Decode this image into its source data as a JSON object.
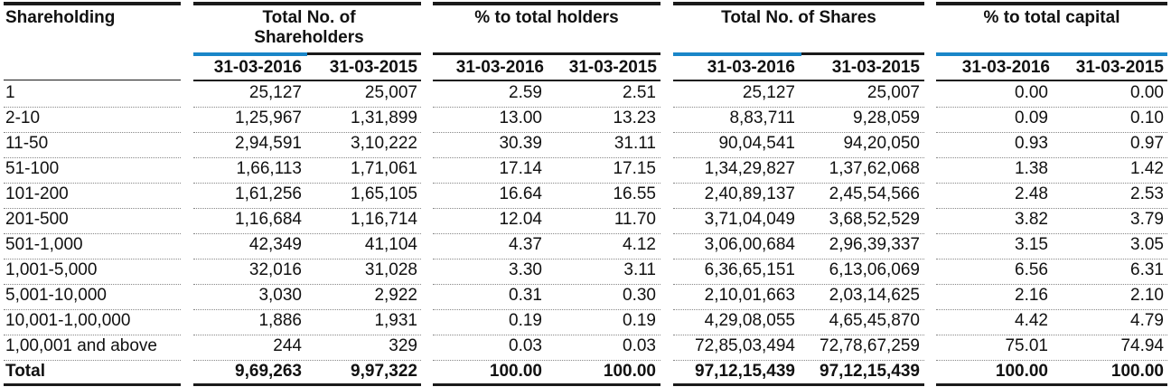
{
  "headers": {
    "shareholding": "Shareholding",
    "holders": "Total No. of Shareholders",
    "pct_holders": "% to total holders",
    "shares": "Total No. of Shares",
    "pct_capital": "% to total capital"
  },
  "dates": [
    "31-03-2016",
    "31-03-2015"
  ],
  "rows": [
    {
      "label": "1",
      "h16": "25,127",
      "h15": "25,007",
      "ph16": "2.59",
      "ph15": "2.51",
      "s16": "25,127",
      "s15": "25,007",
      "pc16": "0.00",
      "pc15": "0.00"
    },
    {
      "label": "2-10",
      "h16": "1,25,967",
      "h15": "1,31,899",
      "ph16": "13.00",
      "ph15": "13.23",
      "s16": "8,83,711",
      "s15": "9,28,059",
      "pc16": "0.09",
      "pc15": "0.10"
    },
    {
      "label": "11-50",
      "h16": "2,94,591",
      "h15": "3,10,222",
      "ph16": "30.39",
      "ph15": "31.11",
      "s16": "90,04,541",
      "s15": "94,20,050",
      "pc16": "0.93",
      "pc15": "0.97"
    },
    {
      "label": "51-100",
      "h16": "1,66,113",
      "h15": "1,71,061",
      "ph16": "17.14",
      "ph15": "17.15",
      "s16": "1,34,29,827",
      "s15": "1,37,62,068",
      "pc16": "1.38",
      "pc15": "1.42"
    },
    {
      "label": "101-200",
      "h16": "1,61,256",
      "h15": "1,65,105",
      "ph16": "16.64",
      "ph15": "16.55",
      "s16": "2,40,89,137",
      "s15": "2,45,54,566",
      "pc16": "2.48",
      "pc15": "2.53"
    },
    {
      "label": "201-500",
      "h16": "1,16,684",
      "h15": "1,16,714",
      "ph16": "12.04",
      "ph15": "11.70",
      "s16": "3,71,04,049",
      "s15": "3,68,52,529",
      "pc16": "3.82",
      "pc15": "3.79"
    },
    {
      "label": "501-1,000",
      "h16": "42,349",
      "h15": "41,104",
      "ph16": "4.37",
      "ph15": "4.12",
      "s16": "3,06,00,684",
      "s15": "2,96,39,337",
      "pc16": "3.15",
      "pc15": "3.05"
    },
    {
      "label": "1,001-5,000",
      "h16": "32,016",
      "h15": "31,028",
      "ph16": "3.30",
      "ph15": "3.11",
      "s16": "6,36,65,151",
      "s15": "6,13,06,069",
      "pc16": "6.56",
      "pc15": "6.31"
    },
    {
      "label": "5,001-10,000",
      "h16": "3,030",
      "h15": "2,922",
      "ph16": "0.31",
      "ph15": "0.30",
      "s16": "2,10,01,663",
      "s15": "2,03,14,625",
      "pc16": "2.16",
      "pc15": "2.10"
    },
    {
      "label": "10,001-1,00,000",
      "h16": "1,886",
      "h15": "1,931",
      "ph16": "0.19",
      "ph15": "0.19",
      "s16": "4,29,08,055",
      "s15": "4,65,45,870",
      "pc16": "4.42",
      "pc15": "4.79"
    },
    {
      "label": "1,00,001 and above",
      "h16": "244",
      "h15": "329",
      "ph16": "0.03",
      "ph15": "0.03",
      "s16": "72,85,03,494",
      "s15": "72,78,67,259",
      "pc16": "75.01",
      "pc15": "74.94"
    }
  ],
  "total": {
    "label": "Total",
    "h16": "9,69,263",
    "h15": "9,97,322",
    "ph16": "100.00",
    "ph15": "100.00",
    "s16": "97,12,15,439",
    "s15": "97,12,15,439",
    "pc16": "100.00",
    "pc15": "100.00"
  },
  "colors": {
    "accent": "#1a86c8",
    "rule": "#1a1a1a"
  }
}
